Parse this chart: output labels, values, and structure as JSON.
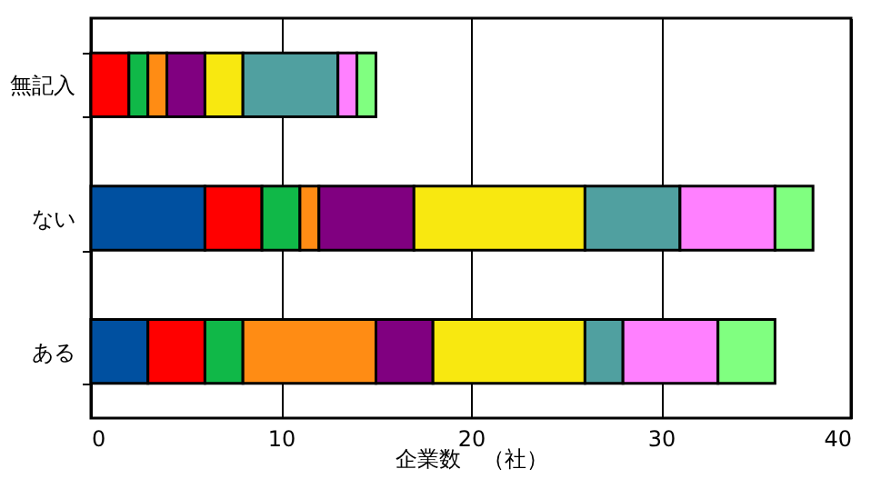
{
  "chart_data": {
    "type": "bar",
    "orientation": "horizontal",
    "stacked": true,
    "xlabel": "企業数　（社）",
    "categories": [
      "無記入",
      "ない",
      "ある"
    ],
    "series": [
      {
        "color": "#0050a0",
        "values": [
          0,
          6,
          3
        ]
      },
      {
        "color": "#ff0000",
        "values": [
          2,
          3,
          3
        ]
      },
      {
        "color": "#10b848",
        "values": [
          1,
          2,
          2
        ]
      },
      {
        "color": "#ff8c14",
        "values": [
          1,
          1,
          7
        ]
      },
      {
        "color": "#800080",
        "values": [
          2,
          5,
          3
        ]
      },
      {
        "color": "#f8e810",
        "values": [
          2,
          9,
          8
        ]
      },
      {
        "color": "#50a0a0",
        "values": [
          5,
          5,
          2
        ]
      },
      {
        "color": "#ff80ff",
        "values": [
          1,
          5,
          5
        ]
      },
      {
        "color": "#80ff80",
        "values": [
          1,
          2,
          3
        ]
      }
    ],
    "xlim": [
      0,
      40
    ],
    "xticks": [
      0,
      10,
      20,
      30,
      40
    ],
    "grid": "x"
  }
}
